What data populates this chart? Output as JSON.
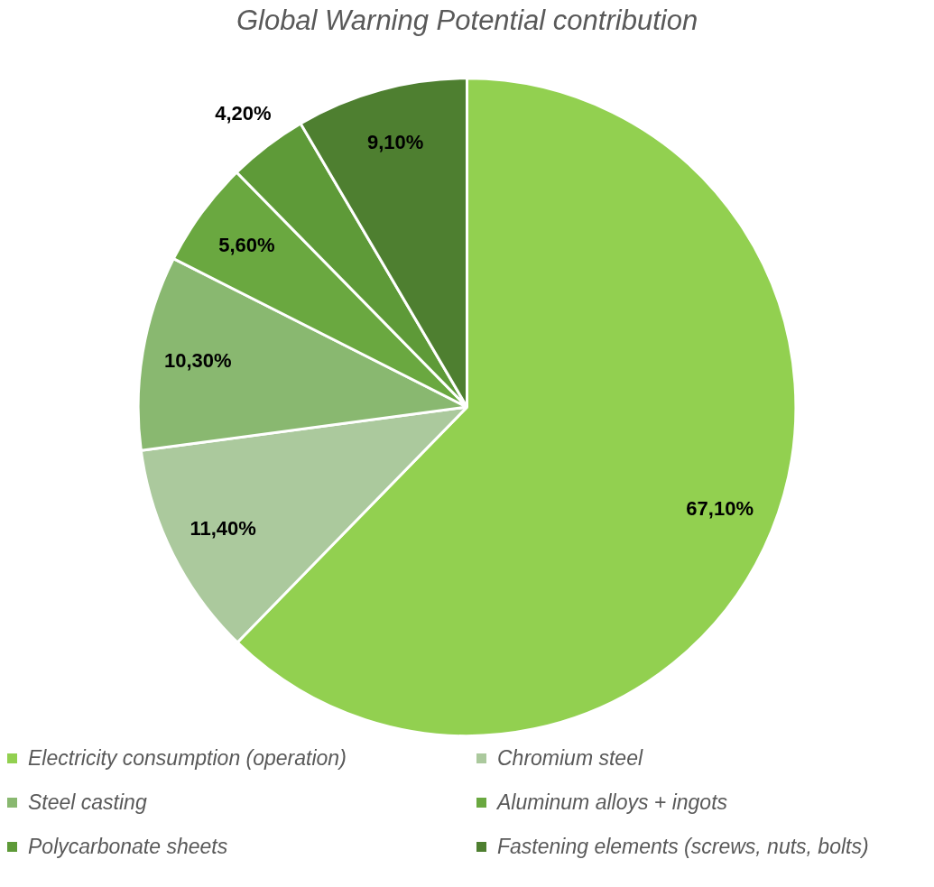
{
  "chart_data": {
    "type": "pie",
    "title": "Global Warning Potential contribution",
    "categories": [
      "Electricity consumption (operation)",
      "Chromium steel",
      "Steel casting",
      "Aluminum alloys + ingots",
      "Polycarbonate sheets",
      "Fastening elements (screws, nuts, bolts)"
    ],
    "values": [
      67.1,
      11.4,
      10.3,
      5.6,
      4.2,
      9.1
    ],
    "colors": [
      "#92d050",
      "#abc99d",
      "#89b870",
      "#6aa840",
      "#5e9a38",
      "#4e7f30"
    ],
    "value_labels": [
      "67,10%",
      "11,40%",
      "10,30%",
      "5,60%",
      "4,20%",
      "9,10%"
    ],
    "legend": "bottom"
  }
}
